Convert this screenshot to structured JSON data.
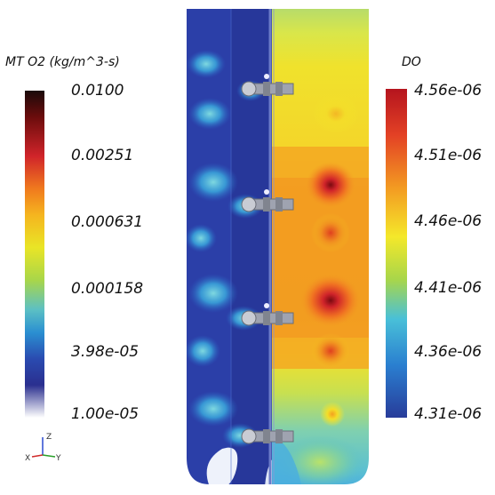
{
  "left_legend": {
    "title": "MT O2 (kg/m^3-s)",
    "ticks": [
      "0.0100",
      "0.00251",
      "0.000631",
      "0.000158",
      "3.98e-05",
      "1.00e-05"
    ]
  },
  "right_legend": {
    "title": "DO",
    "ticks": [
      "4.56e-06",
      "4.51e-06",
      "4.46e-06",
      "4.41e-06",
      "4.36e-06",
      "4.31e-06"
    ]
  },
  "axes": {
    "z": "Z",
    "x": "X",
    "y": "Y"
  },
  "colors": {
    "left_scale": [
      "#1a0a0a",
      "#6b0c0c",
      "#d0242a",
      "#f07a1e",
      "#f5b51f",
      "#e9e526",
      "#a8d64a",
      "#5cc0c4",
      "#2a8fd1",
      "#2a4bb0",
      "#2a2f8f",
      "#ffffff"
    ],
    "right_scale": [
      "#b5141e",
      "#e34125",
      "#f39a22",
      "#f4e82a",
      "#a8d64a",
      "#49c0d8",
      "#2a7fd0",
      "#283c9a"
    ]
  }
}
